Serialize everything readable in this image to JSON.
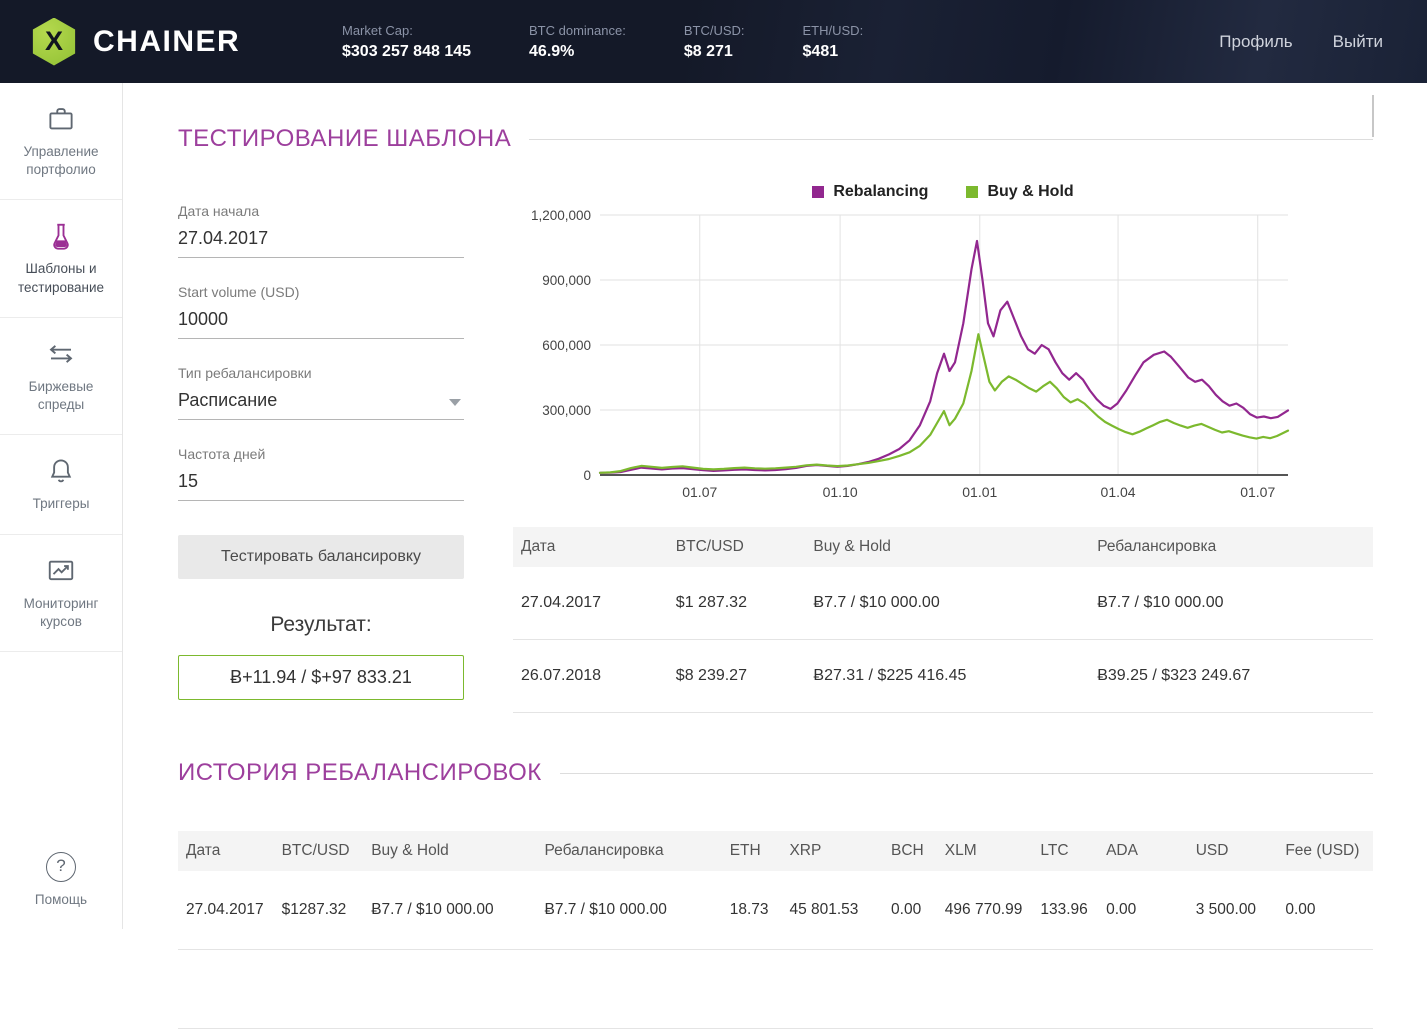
{
  "colors": {
    "accent": "#9d3f9d",
    "rebalancing_line": "#92278f",
    "buyhold_line": "#7cb92e",
    "result_border": "#7cb92e",
    "header_bg": "#141928",
    "logo_green": "#9bc53d"
  },
  "header": {
    "brand": "CHAINER",
    "logo_glyph": "X",
    "stats": [
      {
        "label": "Market Cap:",
        "value": "$303 257 848 145"
      },
      {
        "label": "BTC dominance:",
        "value": "46.9%"
      },
      {
        "label": "BTC/USD:",
        "value": "$8 271"
      },
      {
        "label": "ETH/USD:",
        "value": "$481"
      }
    ],
    "nav": {
      "profile": "Профиль",
      "logout": "Выйти"
    }
  },
  "sidebar": {
    "items": [
      {
        "label": "Управление портфолио",
        "icon": "briefcase-icon",
        "active": false
      },
      {
        "label": "Шаблоны и тестирование",
        "icon": "test-tube-icon",
        "active": true
      },
      {
        "label": "Биржевые спреды",
        "icon": "spread-arrows-icon",
        "active": false
      },
      {
        "label": "Триггеры",
        "icon": "bell-icon",
        "active": false
      },
      {
        "label": "Мониторинг курсов",
        "icon": "chart-monitor-icon",
        "active": false
      }
    ],
    "help": {
      "label": "Помощь",
      "icon_glyph": "?"
    }
  },
  "testing": {
    "title": "ТЕСТИРОВАНИЕ ШАБЛОНА",
    "form": {
      "start_date": {
        "label": "Дата начала",
        "value": "27.04.2017"
      },
      "start_volume": {
        "label": "Start volume (USD)",
        "value": "10000"
      },
      "rebalance_type": {
        "label": "Тип ребалансировки",
        "value": "Расписание"
      },
      "frequency": {
        "label": "Частота дней",
        "value": "15"
      },
      "test_button": "Тестировать балансировку",
      "result_label": "Результат:",
      "result_value": "Ƀ+11.94 / $+97 833.21"
    },
    "summary_table": {
      "headers": [
        "Дата",
        "BTC/USD",
        "Buy & Hold",
        "Ребалансировка"
      ],
      "rows": [
        [
          "27.04.2017",
          "$1 287.32",
          "Ƀ7.7 / $10 000.00",
          "Ƀ7.7 / $10 000.00"
        ],
        [
          "26.07.2018",
          "$8 239.27",
          "Ƀ27.31 / $225 416.45",
          "Ƀ39.25 / $323 249.67"
        ]
      ]
    }
  },
  "history": {
    "title": "ИСТОРИЯ РЕБАЛАНСИРОВОК",
    "table": {
      "headers": [
        "Дата",
        "BTC/USD",
        "Buy & Hold",
        "Ребалансировка",
        "ETH",
        "XRP",
        "BCH",
        "XLM",
        "LTC",
        "ADA",
        "USD",
        "Fee (USD)"
      ],
      "rows": [
        [
          "27.04.2017",
          "$1287.32",
          "Ƀ7.7 / $10 000.00",
          "Ƀ7.7 / $10 000.00",
          "18.73",
          "45 801.53",
          "0.00",
          "496 770.99",
          "133.96",
          "0.00",
          "3 500.00",
          "0.00"
        ]
      ]
    }
  },
  "chart_data": {
    "type": "line",
    "title": "",
    "xlabel": "",
    "ylabel": "",
    "ylim": [
      0,
      1200000
    ],
    "grid": true,
    "legend_position": "top",
    "y_ticks": [
      {
        "v": 0,
        "label": "0"
      },
      {
        "v": 300000,
        "label": "300,000"
      },
      {
        "v": 600000,
        "label": "600,000"
      },
      {
        "v": 900000,
        "label": "900,000"
      },
      {
        "v": 1200000,
        "label": "1,200,000"
      }
    ],
    "x_ticks": [
      {
        "pos": 0.145,
        "label": "01.07"
      },
      {
        "pos": 0.349,
        "label": "01.10"
      },
      {
        "pos": 0.552,
        "label": "01.01"
      },
      {
        "pos": 0.753,
        "label": "01.04"
      },
      {
        "pos": 0.956,
        "label": "01.07"
      }
    ],
    "series": [
      {
        "name": "Rebalancing",
        "color": "#92278f",
        "points": [
          [
            0,
            10000
          ],
          [
            0.015,
            11000
          ],
          [
            0.03,
            14000
          ],
          [
            0.045,
            24000
          ],
          [
            0.06,
            34000
          ],
          [
            0.075,
            30000
          ],
          [
            0.09,
            26000
          ],
          [
            0.105,
            30000
          ],
          [
            0.12,
            32000
          ],
          [
            0.135,
            27000
          ],
          [
            0.15,
            22000
          ],
          [
            0.165,
            19000
          ],
          [
            0.18,
            21000
          ],
          [
            0.195,
            24000
          ],
          [
            0.21,
            26000
          ],
          [
            0.225,
            23000
          ],
          [
            0.24,
            21000
          ],
          [
            0.255,
            23000
          ],
          [
            0.27,
            27000
          ],
          [
            0.285,
            33000
          ],
          [
            0.3,
            42000
          ],
          [
            0.315,
            46000
          ],
          [
            0.33,
            42000
          ],
          [
            0.345,
            38000
          ],
          [
            0.36,
            42000
          ],
          [
            0.375,
            50000
          ],
          [
            0.39,
            60000
          ],
          [
            0.405,
            75000
          ],
          [
            0.42,
            95000
          ],
          [
            0.435,
            120000
          ],
          [
            0.45,
            160000
          ],
          [
            0.465,
            230000
          ],
          [
            0.48,
            340000
          ],
          [
            0.49,
            470000
          ],
          [
            0.5,
            560000
          ],
          [
            0.508,
            480000
          ],
          [
            0.516,
            520000
          ],
          [
            0.528,
            700000
          ],
          [
            0.54,
            950000
          ],
          [
            0.548,
            1080000
          ],
          [
            0.556,
            900000
          ],
          [
            0.564,
            700000
          ],
          [
            0.572,
            640000
          ],
          [
            0.582,
            760000
          ],
          [
            0.592,
            800000
          ],
          [
            0.602,
            720000
          ],
          [
            0.612,
            640000
          ],
          [
            0.622,
            580000
          ],
          [
            0.632,
            560000
          ],
          [
            0.642,
            600000
          ],
          [
            0.652,
            580000
          ],
          [
            0.662,
            520000
          ],
          [
            0.672,
            470000
          ],
          [
            0.682,
            440000
          ],
          [
            0.692,
            470000
          ],
          [
            0.702,
            440000
          ],
          [
            0.712,
            390000
          ],
          [
            0.722,
            350000
          ],
          [
            0.732,
            320000
          ],
          [
            0.742,
            305000
          ],
          [
            0.752,
            330000
          ],
          [
            0.765,
            390000
          ],
          [
            0.778,
            460000
          ],
          [
            0.79,
            520000
          ],
          [
            0.805,
            555000
          ],
          [
            0.82,
            570000
          ],
          [
            0.83,
            545000
          ],
          [
            0.842,
            500000
          ],
          [
            0.855,
            450000
          ],
          [
            0.865,
            430000
          ],
          [
            0.875,
            440000
          ],
          [
            0.885,
            410000
          ],
          [
            0.895,
            370000
          ],
          [
            0.905,
            340000
          ],
          [
            0.915,
            320000
          ],
          [
            0.925,
            330000
          ],
          [
            0.935,
            310000
          ],
          [
            0.945,
            280000
          ],
          [
            0.955,
            265000
          ],
          [
            0.965,
            270000
          ],
          [
            0.975,
            262000
          ],
          [
            0.985,
            268000
          ],
          [
            1,
            298000
          ]
        ]
      },
      {
        "name": "Buy & Hold",
        "color": "#7cb92e",
        "points": [
          [
            0,
            10000
          ],
          [
            0.015,
            12000
          ],
          [
            0.03,
            18000
          ],
          [
            0.045,
            32000
          ],
          [
            0.06,
            42000
          ],
          [
            0.075,
            38000
          ],
          [
            0.09,
            33000
          ],
          [
            0.105,
            37000
          ],
          [
            0.12,
            40000
          ],
          [
            0.135,
            34000
          ],
          [
            0.15,
            28000
          ],
          [
            0.165,
            26000
          ],
          [
            0.18,
            28000
          ],
          [
            0.195,
            32000
          ],
          [
            0.21,
            34000
          ],
          [
            0.225,
            31000
          ],
          [
            0.24,
            29000
          ],
          [
            0.255,
            31000
          ],
          [
            0.27,
            34000
          ],
          [
            0.285,
            38000
          ],
          [
            0.3,
            45000
          ],
          [
            0.315,
            48000
          ],
          [
            0.33,
            44000
          ],
          [
            0.345,
            41000
          ],
          [
            0.36,
            44000
          ],
          [
            0.375,
            50000
          ],
          [
            0.39,
            56000
          ],
          [
            0.405,
            64000
          ],
          [
            0.42,
            74000
          ],
          [
            0.435,
            88000
          ],
          [
            0.45,
            105000
          ],
          [
            0.465,
            135000
          ],
          [
            0.48,
            185000
          ],
          [
            0.49,
            240000
          ],
          [
            0.5,
            295000
          ],
          [
            0.508,
            230000
          ],
          [
            0.516,
            260000
          ],
          [
            0.528,
            330000
          ],
          [
            0.54,
            480000
          ],
          [
            0.55,
            650000
          ],
          [
            0.558,
            540000
          ],
          [
            0.566,
            430000
          ],
          [
            0.574,
            390000
          ],
          [
            0.584,
            430000
          ],
          [
            0.594,
            455000
          ],
          [
            0.604,
            440000
          ],
          [
            0.614,
            420000
          ],
          [
            0.624,
            400000
          ],
          [
            0.634,
            385000
          ],
          [
            0.644,
            410000
          ],
          [
            0.654,
            430000
          ],
          [
            0.664,
            400000
          ],
          [
            0.674,
            360000
          ],
          [
            0.684,
            335000
          ],
          [
            0.694,
            350000
          ],
          [
            0.704,
            330000
          ],
          [
            0.714,
            300000
          ],
          [
            0.724,
            270000
          ],
          [
            0.734,
            245000
          ],
          [
            0.744,
            228000
          ],
          [
            0.754,
            212000
          ],
          [
            0.764,
            198000
          ],
          [
            0.774,
            188000
          ],
          [
            0.784,
            200000
          ],
          [
            0.794,
            215000
          ],
          [
            0.804,
            230000
          ],
          [
            0.814,
            245000
          ],
          [
            0.824,
            255000
          ],
          [
            0.834,
            240000
          ],
          [
            0.844,
            228000
          ],
          [
            0.854,
            218000
          ],
          [
            0.864,
            228000
          ],
          [
            0.874,
            236000
          ],
          [
            0.884,
            222000
          ],
          [
            0.894,
            208000
          ],
          [
            0.904,
            196000
          ],
          [
            0.914,
            202000
          ],
          [
            0.924,
            192000
          ],
          [
            0.934,
            182000
          ],
          [
            0.944,
            174000
          ],
          [
            0.954,
            168000
          ],
          [
            0.964,
            176000
          ],
          [
            0.974,
            170000
          ],
          [
            0.984,
            180000
          ],
          [
            1,
            205000
          ]
        ]
      }
    ]
  }
}
